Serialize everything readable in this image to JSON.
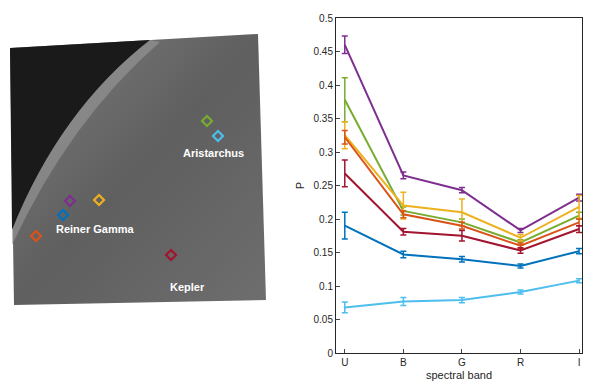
{
  "chart_data": {
    "type": "line",
    "categories": [
      "U",
      "B",
      "G",
      "R",
      "I"
    ],
    "x_label": "spectral band",
    "y_label": "P",
    "ylim": [
      0,
      0.5
    ],
    "yticks": [
      0,
      0.05,
      0.1,
      0.15,
      0.2,
      0.25,
      0.3,
      0.35,
      0.4,
      0.45,
      0.5
    ],
    "marker": "none",
    "series": [
      {
        "color": "#7e2f8e",
        "values": [
          0.46,
          0.265,
          0.243,
          0.183,
          0.232
        ],
        "errors": [
          0.013,
          0.005,
          0.004,
          0.003,
          0.005
        ]
      },
      {
        "color": "#77ac30",
        "values": [
          0.378,
          0.212,
          0.195,
          0.165,
          0.205
        ],
        "errors": [
          0.033,
          0.006,
          0.005,
          0.004,
          0.005
        ]
      },
      {
        "color": "#edb120",
        "values": [
          0.325,
          0.22,
          0.21,
          0.172,
          0.218
        ],
        "errors": [
          0.02,
          0.02,
          0.02,
          0.005,
          0.017
        ]
      },
      {
        "color": "#d95319",
        "values": [
          0.322,
          0.207,
          0.19,
          0.16,
          0.195
        ],
        "errors": [
          0.01,
          0.005,
          0.005,
          0.004,
          0.005
        ]
      },
      {
        "color": "#a2142f",
        "values": [
          0.268,
          0.181,
          0.175,
          0.153,
          0.185
        ],
        "errors": [
          0.02,
          0.005,
          0.008,
          0.004,
          0.005
        ]
      },
      {
        "color": "#0072bd",
        "values": [
          0.19,
          0.147,
          0.14,
          0.13,
          0.152
        ],
        "errors": [
          0.02,
          0.005,
          0.004,
          0.003,
          0.004
        ]
      },
      {
        "color": "#4dbeee",
        "values": [
          0.068,
          0.077,
          0.079,
          0.091,
          0.108
        ],
        "errors": [
          0.008,
          0.006,
          0.004,
          0.003,
          0.003
        ]
      }
    ],
    "map_labels": [
      "Aristarchus",
      "Reiner Gamma",
      "Kepler"
    ]
  }
}
